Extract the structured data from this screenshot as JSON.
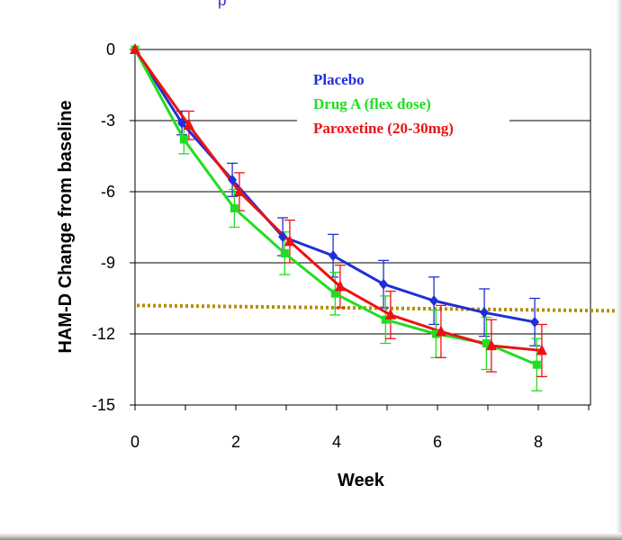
{
  "header": {
    "partial_title": "p"
  },
  "chart_data": {
    "type": "line",
    "title": "",
    "xlabel": "Week",
    "ylabel": "HAM-D Change from baseline",
    "xlim": [
      0,
      9
    ],
    "ylim": [
      -15,
      0
    ],
    "x_ticks": [
      "0",
      "2",
      "4",
      "6",
      "8"
    ],
    "y_ticks": [
      "0",
      "-3",
      "-6",
      "-9",
      "-12",
      "-15"
    ],
    "grid": "horizontal",
    "legend_placement": "top-right",
    "reference_line": {
      "y": -10.8,
      "style": "dotted",
      "color": "#b38f00"
    },
    "series": [
      {
        "name": "Placebo",
        "color": "#1f2fd6",
        "marker": "diamond",
        "x": [
          0,
          0.93,
          1.93,
          2.93,
          3.93,
          4.93,
          5.93,
          6.93,
          7.93
        ],
        "values": [
          0,
          -3.1,
          -5.5,
          -7.9,
          -8.7,
          -9.9,
          -10.6,
          -11.1,
          -11.5
        ],
        "errors": [
          0,
          0.5,
          0.7,
          0.8,
          0.9,
          1.0,
          1.0,
          1.0,
          1.0
        ]
      },
      {
        "name": "Drug A (flex dose)",
        "color": "#22dd22",
        "marker": "square",
        "x": [
          0,
          0.97,
          1.97,
          2.97,
          3.97,
          4.97,
          5.97,
          6.97,
          7.97
        ],
        "values": [
          0,
          -3.8,
          -6.7,
          -8.6,
          -10.3,
          -11.4,
          -12.0,
          -12.4,
          -13.3
        ],
        "errors": [
          0,
          0.6,
          0.8,
          0.9,
          0.9,
          1.0,
          1.0,
          1.1,
          1.1
        ]
      },
      {
        "name": "Paroxetine (20-30mg)",
        "color": "#ee1111",
        "marker": "triangle",
        "x": [
          0,
          1.07,
          2.07,
          3.07,
          4.07,
          5.07,
          6.07,
          7.07,
          8.07
        ],
        "values": [
          0,
          -3.2,
          -6.0,
          -8.1,
          -10.0,
          -11.2,
          -11.9,
          -12.5,
          -12.7
        ],
        "errors": [
          0,
          0.6,
          0.8,
          0.9,
          0.9,
          1.0,
          1.1,
          1.1,
          1.1
        ]
      }
    ]
  }
}
